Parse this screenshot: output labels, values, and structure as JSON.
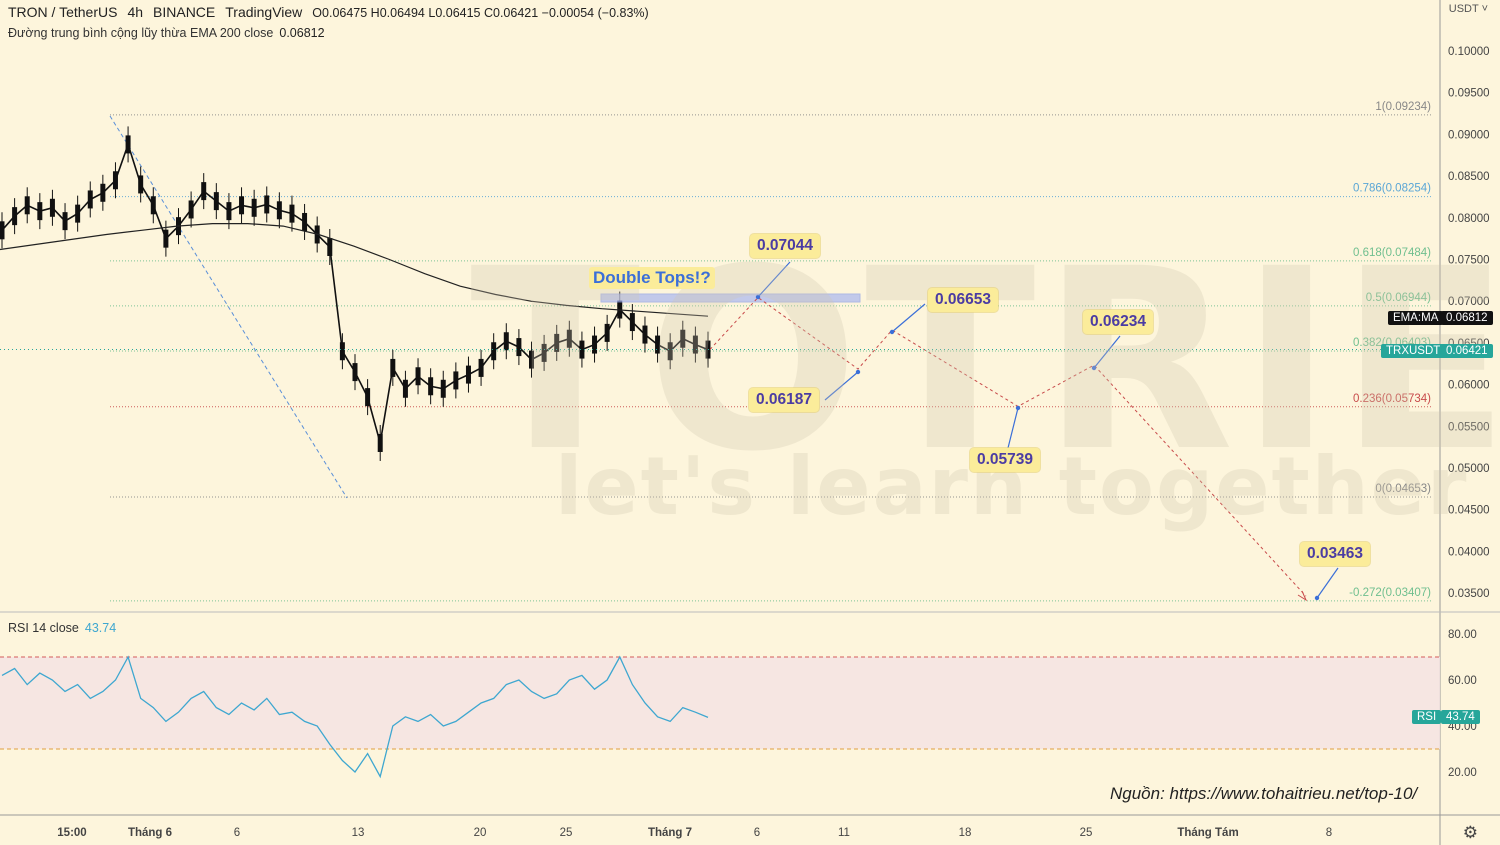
{
  "header": {
    "symbol": "TRON / TetherUS",
    "interval": "4h",
    "exchange": "BINANCE",
    "platform": "TradingView",
    "ohlc": "O0.06475  H0.06494  L0.06415  C0.06421  −0.00054 (−0.83%)",
    "ema_label": "Đường trung bình cộng lũy thừa EMA 200 close",
    "ema_value": "0.06812",
    "currency_menu": "USDT ˅"
  },
  "watermark": {
    "main": "TOTRIEU",
    "sub": "let's learn together"
  },
  "rsi_header": {
    "label": "RSI 14 close",
    "value": "43.74"
  },
  "price_tags": {
    "ema_name": "EMA:MA",
    "ema_value": "0.06812",
    "sym_name": "TRXUSDT",
    "sym_value": "0.06421",
    "rsi_name": "RSI",
    "rsi_value": "43.74"
  },
  "annotations": {
    "double_tops": "Double Tops!?",
    "targets": [
      "0.07044",
      "0.06187",
      "0.06653",
      "0.05739",
      "0.06234",
      "0.03463"
    ]
  },
  "source_text": "Nguồn: https://www.tohaitrieu.net/top-10/",
  "colors": {
    "background": "#fdf5dc",
    "rsi_band": "#f5e3e3",
    "rsi_line": "#3ea7d0",
    "fib_grey": "#888888",
    "fib_blue": "#5aa6d6",
    "fib_green": "#6fbf8f",
    "fib_red": "#c84b4b",
    "target_path": "#c84b4b",
    "label_bg": "#fbec9a",
    "sym_tag": "#26a69a",
    "ema_tag": "#111111"
  },
  "chart_data": [
    {
      "type": "line",
      "title": "TRON / TetherUS 4h BINANCE",
      "x_ticks": [
        "15:00",
        "Tháng 6",
        "6",
        "13",
        "20",
        "25",
        "Tháng 7",
        "6",
        "11",
        "18",
        "25",
        "Tháng Tám",
        "8"
      ],
      "y_ticks": [
        "0.10000",
        "0.09500",
        "0.09000",
        "0.08500",
        "0.08000",
        "0.07500",
        "0.07000",
        "0.06500",
        "0.06000",
        "0.05500",
        "0.05000",
        "0.04500",
        "0.04000",
        "0.03500"
      ],
      "ylim": [
        0.0335,
        0.1038
      ],
      "fibonacci": [
        {
          "label": "1(0.09234)",
          "ratio": 1,
          "value": 0.09234,
          "color": "#888888"
        },
        {
          "label": "0.786(0.08254)",
          "ratio": 0.786,
          "value": 0.08254,
          "color": "#5aa6d6"
        },
        {
          "label": "0.618(0.07484)",
          "ratio": 0.618,
          "value": 0.07484,
          "color": "#6fbf8f"
        },
        {
          "label": "0.5(0.06944)",
          "ratio": 0.5,
          "value": 0.06944,
          "color": "#6fbf8f"
        },
        {
          "label": "0.382(0.06403)",
          "ratio": 0.382,
          "value": 0.06403,
          "color": "#6fbf8f"
        },
        {
          "label": "0.236(0.05734)",
          "ratio": 0.236,
          "value": 0.05734,
          "color": "#c84b4b"
        },
        {
          "label": "0(0.04653)",
          "ratio": 0,
          "value": 0.04653,
          "color": "#888888"
        },
        {
          "label": "-0.272(0.03407)",
          "ratio": -0.272,
          "value": 0.03407,
          "color": "#6fbf8f"
        }
      ],
      "price_close_approx": [
        0.0785,
        0.0802,
        0.0815,
        0.0808,
        0.0812,
        0.0796,
        0.0805,
        0.0822,
        0.083,
        0.0845,
        0.0888,
        0.084,
        0.0815,
        0.0775,
        0.079,
        0.081,
        0.0832,
        0.082,
        0.0808,
        0.0815,
        0.0812,
        0.0816,
        0.0809,
        0.0805,
        0.0795,
        0.078,
        0.0765,
        0.064,
        0.0615,
        0.0585,
        0.053,
        0.062,
        0.0595,
        0.061,
        0.0598,
        0.0595,
        0.0605,
        0.0612,
        0.062,
        0.064,
        0.0652,
        0.0645,
        0.063,
        0.0638,
        0.065,
        0.0655,
        0.0642,
        0.0648,
        0.0662,
        0.069,
        0.0675,
        0.066,
        0.0648,
        0.064,
        0.0655,
        0.0648,
        0.0642
      ],
      "ema200_approx": [
        0.0762,
        0.0768,
        0.0774,
        0.078,
        0.0785,
        0.079,
        0.0793,
        0.0793,
        0.079,
        0.078,
        0.0766,
        0.075,
        0.0733,
        0.0718,
        0.0708,
        0.07,
        0.0695,
        0.0691,
        0.0688,
        0.0685,
        0.0682
      ],
      "target_path": [
        {
          "label": "0.07044",
          "value": 0.07044
        },
        {
          "label": "0.06187",
          "value": 0.06187
        },
        {
          "label": "0.06653",
          "value": 0.06653
        },
        {
          "label": "0.05739",
          "value": 0.05739
        },
        {
          "label": "0.06234",
          "value": 0.06234
        },
        {
          "label": "0.03463",
          "value": 0.03463
        }
      ],
      "last_price": 0.06421,
      "ema200_last": 0.06812
    },
    {
      "type": "line",
      "title": "RSI 14 close",
      "ylim": [
        10,
        90
      ],
      "y_ticks": [
        "80.00",
        "60.00",
        "40.00",
        "20.00"
      ],
      "band": [
        30,
        70
      ],
      "values": [
        62,
        65,
        58,
        63,
        60,
        55,
        58,
        52,
        55,
        60,
        70,
        52,
        48,
        42,
        46,
        52,
        55,
        48,
        45,
        50,
        47,
        52,
        45,
        46,
        42,
        40,
        32,
        25,
        20,
        28,
        18,
        40,
        44,
        42,
        45,
        40,
        42,
        46,
        50,
        52,
        58,
        60,
        55,
        52,
        54,
        60,
        62,
        56,
        60,
        70,
        58,
        50,
        44,
        42,
        48,
        46,
        43.74
      ],
      "last_value": 43.74
    }
  ]
}
